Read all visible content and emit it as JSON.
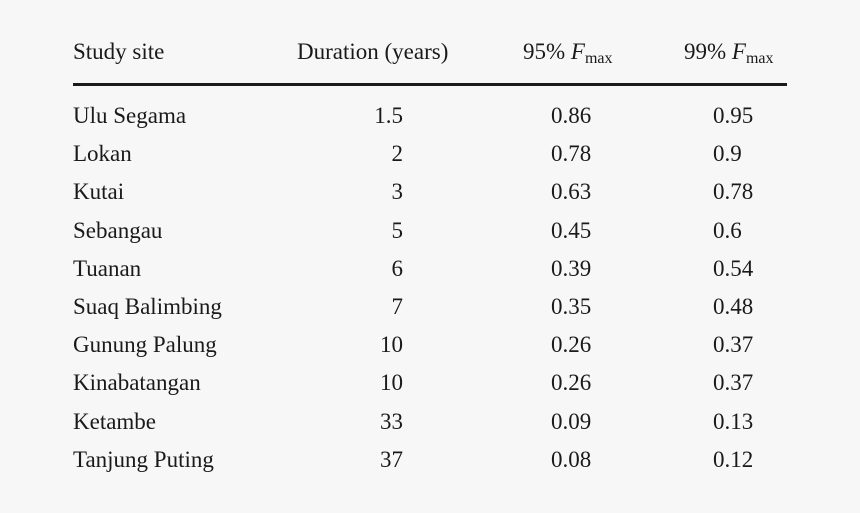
{
  "table": {
    "headers": {
      "site": "Study site",
      "duration": "Duration (years)",
      "f95_prefix": "95%",
      "f99_prefix": "99%",
      "f_symbol": "F",
      "f_sub": "max"
    },
    "rows": [
      {
        "site": "Ulu Segama",
        "duration": "1.5",
        "f95": "0.86",
        "f99": "0.95"
      },
      {
        "site": "Lokan",
        "duration": "2",
        "f95": "0.78",
        "f99": "0.9"
      },
      {
        "site": "Kutai",
        "duration": "3",
        "f95": "0.63",
        "f99": "0.78"
      },
      {
        "site": "Sebangau",
        "duration": "5",
        "f95": "0.45",
        "f99": "0.6"
      },
      {
        "site": "Tuanan",
        "duration": "6",
        "f95": "0.39",
        "f99": "0.54"
      },
      {
        "site": "Suaq Balimbing",
        "duration": "7",
        "f95": "0.35",
        "f99": "0.48"
      },
      {
        "site": "Gunung Palung",
        "duration": "10",
        "f95": "0.26",
        "f99": "0.37"
      },
      {
        "site": "Kinabatangan",
        "duration": "10",
        "f95": "0.26",
        "f99": "0.37"
      },
      {
        "site": "Ketambe",
        "duration": "33",
        "f95": "0.09",
        "f99": "0.13"
      },
      {
        "site": "Tanjung Puting",
        "duration": "37",
        "f95": "0.08",
        "f99": "0.12"
      }
    ]
  }
}
